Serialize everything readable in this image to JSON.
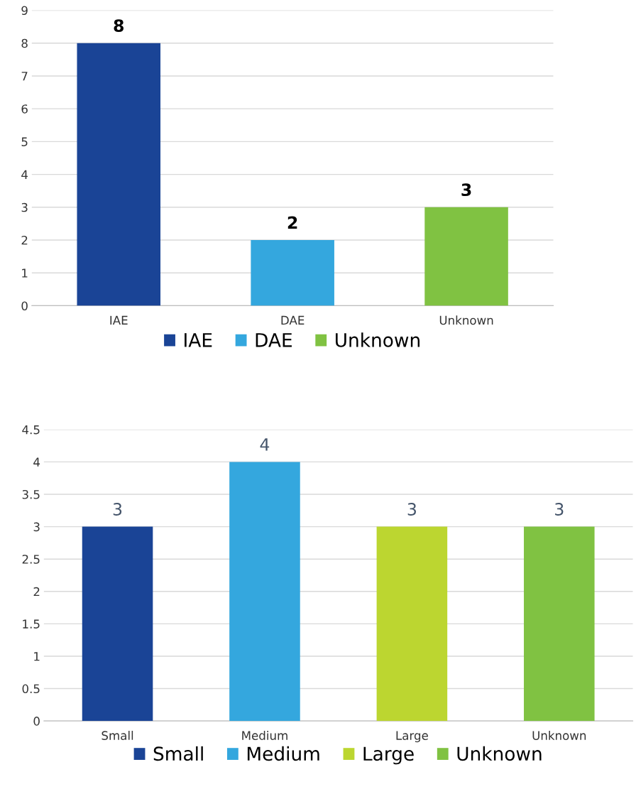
{
  "chart_data": [
    {
      "type": "bar",
      "categories": [
        "IAE",
        "DAE",
        "Unknown"
      ],
      "series": [
        {
          "name": "IAE",
          "color": "#1a4496",
          "values": [
            8,
            null,
            null
          ]
        },
        {
          "name": "DAE",
          "color": "#34a7de",
          "values": [
            null,
            2,
            null
          ]
        },
        {
          "name": "Unknown",
          "color": "#80c242",
          "values": [
            null,
            null,
            3
          ]
        }
      ],
      "ylim": [
        0,
        9
      ],
      "yticks": [
        0,
        1,
        2,
        3,
        4,
        5,
        6,
        7,
        8,
        9
      ],
      "grid": "y",
      "data_labels": true,
      "legend": "bottom"
    },
    {
      "type": "bar",
      "categories": [
        "Small",
        "Medium",
        "Large",
        "Unknown"
      ],
      "series": [
        {
          "name": "Small",
          "color": "#1a4496",
          "values": [
            3,
            null,
            null,
            null
          ]
        },
        {
          "name": "Medium",
          "color": "#34a7de",
          "values": [
            null,
            4,
            null,
            null
          ]
        },
        {
          "name": "Large",
          "color": "#bcd630",
          "values": [
            null,
            null,
            3,
            null
          ]
        },
        {
          "name": "Unknown",
          "color": "#80c242",
          "values": [
            null,
            null,
            null,
            3
          ]
        }
      ],
      "ylim": [
        0,
        4.5
      ],
      "yticks": [
        0,
        0.5,
        1,
        1.5,
        2,
        2.5,
        3,
        3.5,
        4,
        4.5
      ],
      "grid": "y",
      "data_labels": true,
      "legend": "bottom"
    }
  ]
}
